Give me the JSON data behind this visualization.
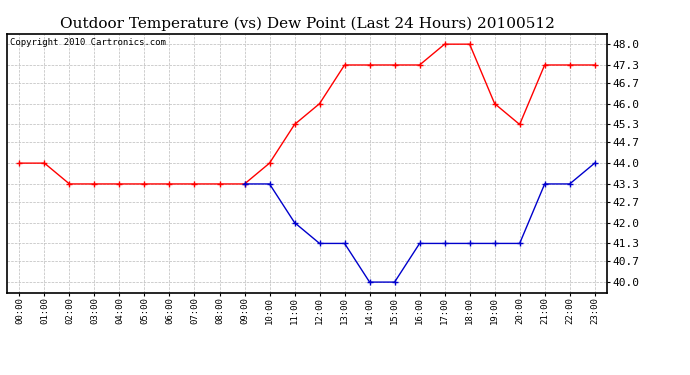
{
  "title": "Outdoor Temperature (vs) Dew Point (Last 24 Hours) 20100512",
  "copyright_text": "Copyright 2010 Cartronics.com",
  "x_labels": [
    "00:00",
    "01:00",
    "02:00",
    "03:00",
    "04:00",
    "05:00",
    "06:00",
    "07:00",
    "08:00",
    "09:00",
    "10:00",
    "11:00",
    "12:00",
    "13:00",
    "14:00",
    "15:00",
    "16:00",
    "17:00",
    "18:00",
    "19:00",
    "20:00",
    "21:00",
    "22:00",
    "23:00"
  ],
  "y_ticks": [
    40.0,
    40.7,
    41.3,
    42.0,
    42.7,
    43.3,
    44.0,
    44.7,
    45.3,
    46.0,
    46.7,
    47.3,
    48.0
  ],
  "ylim": [
    39.65,
    48.35
  ],
  "red_data": [
    44.0,
    44.0,
    43.3,
    43.3,
    43.3,
    43.3,
    43.3,
    43.3,
    43.3,
    43.3,
    44.0,
    45.3,
    46.0,
    47.3,
    47.3,
    47.3,
    47.3,
    48.0,
    48.0,
    46.0,
    45.3,
    47.3,
    47.3,
    47.3
  ],
  "blue_data": [
    null,
    null,
    null,
    null,
    null,
    null,
    null,
    null,
    null,
    43.3,
    43.3,
    42.0,
    41.3,
    41.3,
    40.0,
    40.0,
    41.3,
    41.3,
    41.3,
    41.3,
    41.3,
    43.3,
    43.3,
    44.0
  ],
  "red_color": "#ff0000",
  "blue_color": "#0000cc",
  "bg_color": "#ffffff",
  "plot_bg_color": "#ffffff",
  "grid_color": "#bbbbbb",
  "title_fontsize": 11,
  "copyright_fontsize": 6.5
}
